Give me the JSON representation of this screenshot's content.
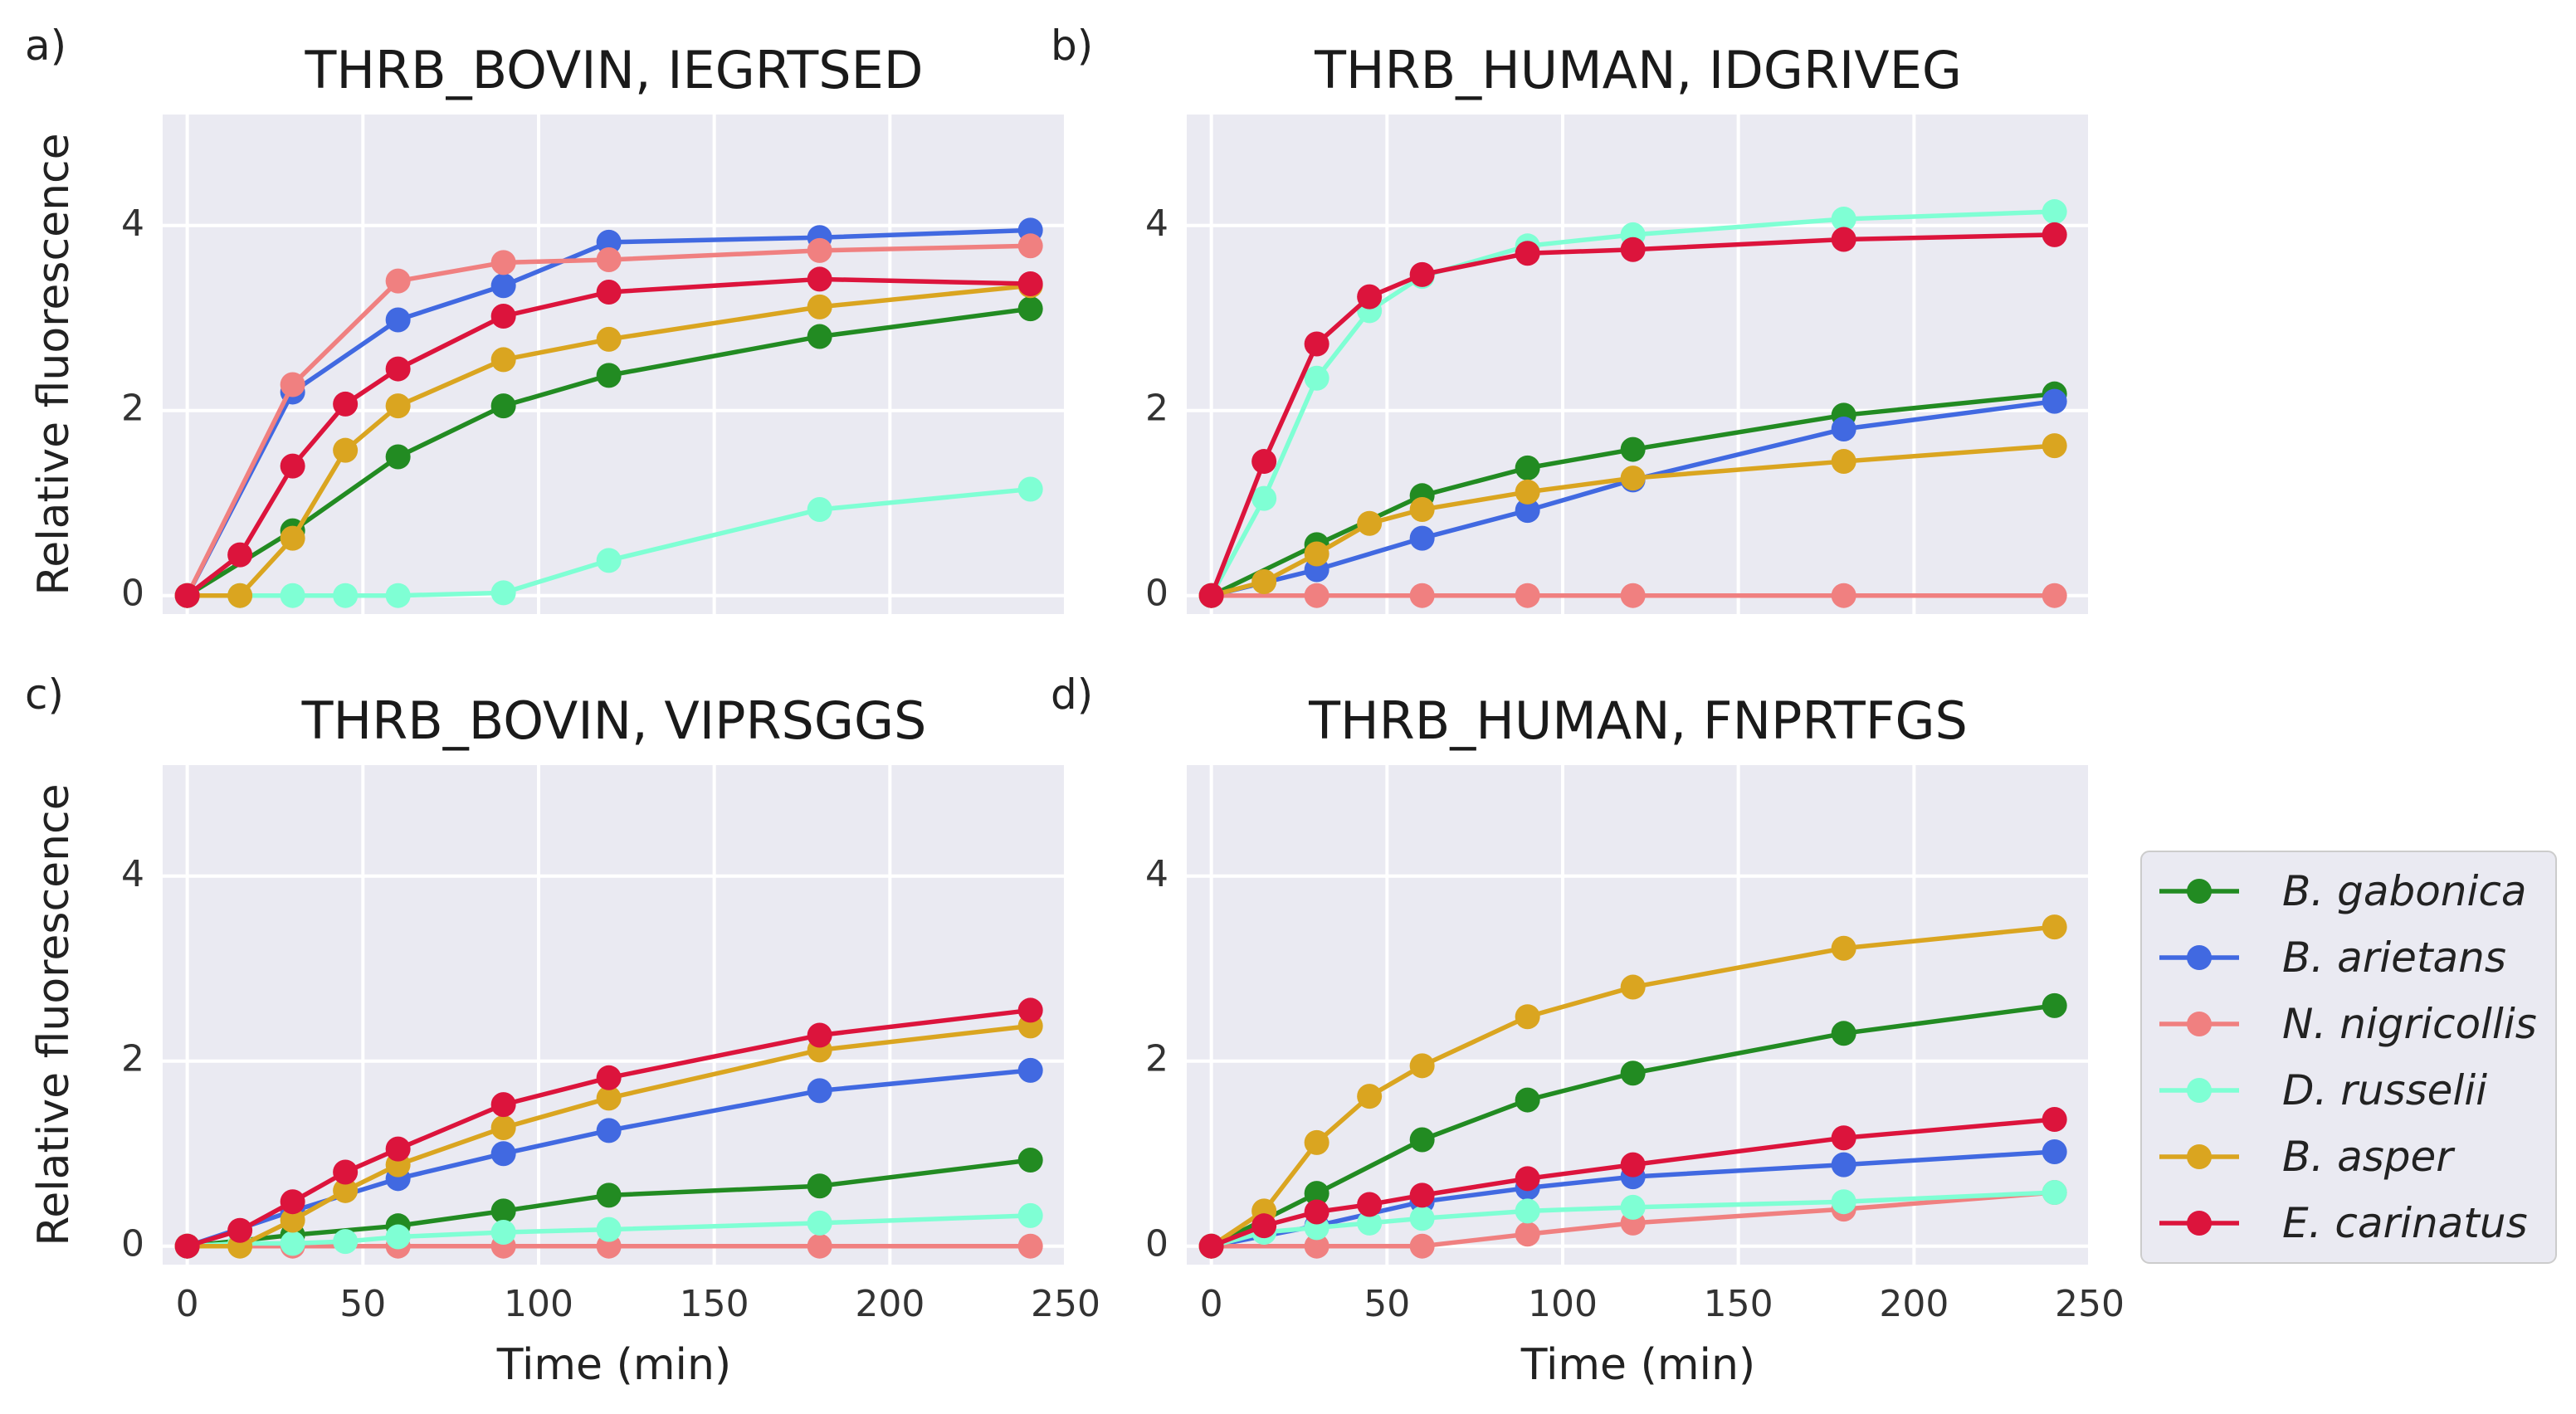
{
  "colors": {
    "B. gabonica": "#228B22",
    "B. arietans": "#4169E1",
    "N. nigricollis": "#F08080",
    "D. russelii": "#7FFFD4",
    "B. asper": "#DAA520",
    "E. carinatus": "#DC143C",
    "panel_bg": "#EAEAF2",
    "grid": "#FFFFFF"
  },
  "legend": {
    "entries": [
      "B. gabonica",
      "B. arietans",
      "N. nigricollis",
      "D. russelii",
      "B. asper",
      "E. carinatus"
    ],
    "placement": "right, beside panel d"
  },
  "chart_data": [
    {
      "panel": "a)",
      "type": "line",
      "title": "THRB_BOVIN, IEGRTSED",
      "xlabel": "",
      "ylabel": "Relative fluorescence",
      "xlim": [
        -7,
        250
      ],
      "ylim": [
        -0.2,
        5.2
      ],
      "xticks": [
        0,
        50,
        100,
        150,
        200,
        250
      ],
      "yticks": [
        0,
        2,
        4
      ],
      "show_xticklabels": false,
      "show_yticklabels": true,
      "grid": true,
      "series": [
        {
          "name": "B. gabonica",
          "x": [
            0,
            30,
            60,
            90,
            120,
            180,
            240
          ],
          "values": [
            0,
            0.7,
            1.5,
            2.05,
            2.38,
            2.8,
            3.1
          ]
        },
        {
          "name": "B. arietans",
          "x": [
            0,
            30,
            60,
            90,
            120,
            180,
            240
          ],
          "values": [
            0,
            2.2,
            2.98,
            3.35,
            3.82,
            3.87,
            3.95
          ]
        },
        {
          "name": "N. nigricollis",
          "x": [
            0,
            30,
            60,
            90,
            120,
            180,
            240
          ],
          "values": [
            0,
            2.28,
            3.4,
            3.6,
            3.63,
            3.73,
            3.78
          ]
        },
        {
          "name": "D. russelii",
          "x": [
            0,
            15,
            30,
            45,
            60,
            90,
            120,
            180,
            240
          ],
          "values": [
            0,
            0,
            0,
            0,
            0,
            0.03,
            0.38,
            0.93,
            1.15
          ]
        },
        {
          "name": "B. asper",
          "x": [
            0,
            15,
            30,
            45,
            60,
            90,
            120,
            180,
            240
          ],
          "values": [
            0,
            0,
            0.62,
            1.57,
            2.05,
            2.55,
            2.77,
            3.12,
            3.35
          ]
        },
        {
          "name": "E. carinatus",
          "x": [
            0,
            15,
            30,
            45,
            60,
            90,
            120,
            180,
            240
          ],
          "values": [
            0,
            0.44,
            1.4,
            2.07,
            2.45,
            3.02,
            3.28,
            3.42,
            3.37
          ]
        }
      ]
    },
    {
      "panel": "b)",
      "type": "line",
      "title": "THRB_HUMAN, IDGRIVEG",
      "xlabel": "",
      "ylabel": "",
      "xlim": [
        -7,
        250
      ],
      "ylim": [
        -0.2,
        5.2
      ],
      "xticks": [
        0,
        50,
        100,
        150,
        200,
        250
      ],
      "yticks": [
        0,
        2,
        4
      ],
      "show_xticklabels": false,
      "show_yticklabels": true,
      "grid": true,
      "series": [
        {
          "name": "B. gabonica",
          "x": [
            0,
            30,
            60,
            90,
            120,
            180,
            240
          ],
          "values": [
            0,
            0.55,
            1.08,
            1.38,
            1.58,
            1.95,
            2.18
          ]
        },
        {
          "name": "B. arietans",
          "x": [
            0,
            30,
            60,
            90,
            120,
            180,
            240
          ],
          "values": [
            0,
            0.28,
            0.62,
            0.92,
            1.25,
            1.8,
            2.1
          ]
        },
        {
          "name": "N. nigricollis",
          "x": [
            0,
            30,
            60,
            90,
            120,
            180,
            240
          ],
          "values": [
            0,
            0,
            0,
            0,
            0,
            0,
            0
          ]
        },
        {
          "name": "D. russelii",
          "x": [
            0,
            15,
            30,
            45,
            60,
            90,
            120,
            180,
            240
          ],
          "values": [
            0,
            1.05,
            2.35,
            3.08,
            3.45,
            3.78,
            3.9,
            4.07,
            4.15
          ]
        },
        {
          "name": "B. asper",
          "x": [
            0,
            15,
            30,
            45,
            60,
            90,
            120,
            180,
            240
          ],
          "values": [
            0,
            0.15,
            0.45,
            0.78,
            0.93,
            1.12,
            1.27,
            1.45,
            1.62
          ]
        },
        {
          "name": "E. carinatus",
          "x": [
            0,
            15,
            30,
            45,
            60,
            90,
            120,
            180,
            240
          ],
          "values": [
            0,
            1.45,
            2.72,
            3.23,
            3.47,
            3.7,
            3.74,
            3.85,
            3.9
          ]
        }
      ]
    },
    {
      "panel": "c)",
      "type": "line",
      "title": "THRB_BOVIN, VIPRSGGS",
      "xlabel": "Time (min)",
      "ylabel": "Relative fluorescence",
      "xlim": [
        -7,
        250
      ],
      "ylim": [
        -0.2,
        5.2
      ],
      "xticks": [
        0,
        50,
        100,
        150,
        200,
        250
      ],
      "yticks": [
        0,
        2,
        4
      ],
      "show_xticklabels": true,
      "show_yticklabels": true,
      "grid": true,
      "series": [
        {
          "name": "B. gabonica",
          "x": [
            0,
            30,
            60,
            90,
            120,
            180,
            240
          ],
          "values": [
            0,
            0.12,
            0.22,
            0.38,
            0.55,
            0.65,
            0.93
          ]
        },
        {
          "name": "B. arietans",
          "x": [
            0,
            30,
            60,
            90,
            120,
            180,
            240
          ],
          "values": [
            0,
            0.38,
            0.73,
            1.0,
            1.25,
            1.68,
            1.9
          ]
        },
        {
          "name": "N. nigricollis",
          "x": [
            0,
            30,
            60,
            90,
            120,
            180,
            240
          ],
          "values": [
            0,
            0,
            0,
            0,
            0,
            0,
            0
          ]
        },
        {
          "name": "D. russelii",
          "x": [
            0,
            15,
            30,
            45,
            60,
            90,
            120,
            180,
            240
          ],
          "values": [
            0,
            0.03,
            0.03,
            0.05,
            0.1,
            0.15,
            0.18,
            0.25,
            0.33
          ]
        },
        {
          "name": "B. asper",
          "x": [
            0,
            15,
            30,
            45,
            60,
            90,
            120,
            180,
            240
          ],
          "values": [
            0,
            0,
            0.28,
            0.6,
            0.88,
            1.28,
            1.6,
            2.12,
            2.38
          ]
        },
        {
          "name": "E. carinatus",
          "x": [
            0,
            15,
            30,
            45,
            60,
            90,
            120,
            180,
            240
          ],
          "values": [
            0,
            0.17,
            0.48,
            0.8,
            1.05,
            1.53,
            1.82,
            2.28,
            2.55
          ]
        }
      ]
    },
    {
      "panel": "d)",
      "type": "line",
      "title": "THRB_HUMAN, FNPRTFGS",
      "xlabel": "Time (min)",
      "ylabel": "",
      "xlim": [
        -7,
        250
      ],
      "ylim": [
        -0.2,
        5.2
      ],
      "xticks": [
        0,
        50,
        100,
        150,
        200,
        250
      ],
      "yticks": [
        0,
        2,
        4
      ],
      "show_xticklabels": true,
      "show_yticklabels": true,
      "grid": true,
      "series": [
        {
          "name": "B. gabonica",
          "x": [
            0,
            30,
            60,
            90,
            120,
            180,
            240
          ],
          "values": [
            0,
            0.57,
            1.15,
            1.58,
            1.87,
            2.3,
            2.6
          ]
        },
        {
          "name": "B. arietans",
          "x": [
            0,
            30,
            60,
            90,
            120,
            180,
            240
          ],
          "values": [
            0,
            0.22,
            0.48,
            0.63,
            0.75,
            0.88,
            1.02
          ]
        },
        {
          "name": "N. nigricollis",
          "x": [
            0,
            30,
            60,
            90,
            120,
            180,
            240
          ],
          "values": [
            0,
            0,
            0,
            0.13,
            0.25,
            0.4,
            0.58
          ]
        },
        {
          "name": "D. russelii",
          "x": [
            0,
            15,
            30,
            45,
            60,
            90,
            120,
            180,
            240
          ],
          "values": [
            0,
            0.15,
            0.2,
            0.25,
            0.3,
            0.38,
            0.42,
            0.48,
            0.58
          ]
        },
        {
          "name": "B. asper",
          "x": [
            0,
            15,
            30,
            45,
            60,
            90,
            120,
            180,
            240
          ],
          "values": [
            0,
            0.38,
            1.12,
            1.62,
            1.95,
            2.48,
            2.8,
            3.22,
            3.45
          ]
        },
        {
          "name": "E. carinatus",
          "x": [
            0,
            15,
            30,
            45,
            60,
            90,
            120,
            180,
            240
          ],
          "values": [
            0,
            0.22,
            0.37,
            0.45,
            0.55,
            0.73,
            0.88,
            1.17,
            1.37
          ]
        }
      ]
    }
  ]
}
